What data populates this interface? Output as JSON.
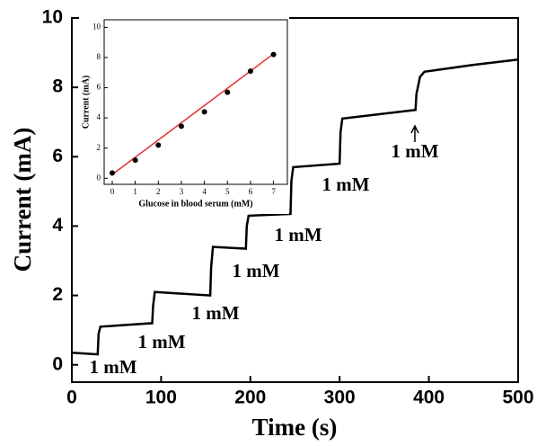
{
  "chart_data": [
    {
      "type": "line",
      "xlabel": "Time (s)",
      "ylabel": "Current (mA)",
      "x": [
        0,
        29,
        30,
        32,
        90,
        91,
        93,
        155,
        156,
        158,
        195,
        196,
        198,
        245,
        246,
        248,
        300,
        301,
        303,
        385,
        386,
        390,
        395,
        450,
        500
      ],
      "values": [
        0.35,
        0.3,
        0.9,
        1.1,
        1.2,
        1.7,
        2.1,
        2.0,
        2.8,
        3.4,
        3.35,
        4.0,
        4.3,
        4.35,
        5.3,
        5.7,
        5.8,
        6.7,
        7.1,
        7.35,
        7.8,
        8.3,
        8.45,
        8.65,
        8.8
      ],
      "color": "#000000",
      "xlim": [
        0,
        500
      ],
      "xticks": [
        0,
        100,
        200,
        300,
        400,
        500
      ],
      "ylim": [
        -0.5,
        10
      ],
      "yticks": [
        0,
        2,
        4,
        6,
        8,
        10
      ],
      "annotations": [
        "1 mM",
        "1 mM",
        "1 mM",
        "1 mM",
        "1 mM",
        "1 mM",
        "1 mM"
      ]
    },
    {
      "type": "scatter",
      "xlabel": "Glucose in blood serum (mM)",
      "ylabel": "Current (mA)",
      "x": [
        0,
        1,
        2,
        3,
        4,
        5,
        6,
        7
      ],
      "values": [
        0.35,
        1.2,
        2.2,
        3.45,
        4.4,
        5.7,
        7.1,
        8.2
      ],
      "color": "#000000",
      "fit": {
        "x": [
          0,
          7
        ],
        "values": [
          0.25,
          8.25
        ],
        "color": "#e03030"
      },
      "xlim": [
        -0.35,
        7.6
      ],
      "xticks": [
        0,
        1,
        2,
        3,
        4,
        5,
        6,
        7
      ],
      "ylim": [
        -0.4,
        10.5
      ],
      "yticks": [
        0,
        2,
        4,
        6,
        8,
        10
      ]
    }
  ]
}
